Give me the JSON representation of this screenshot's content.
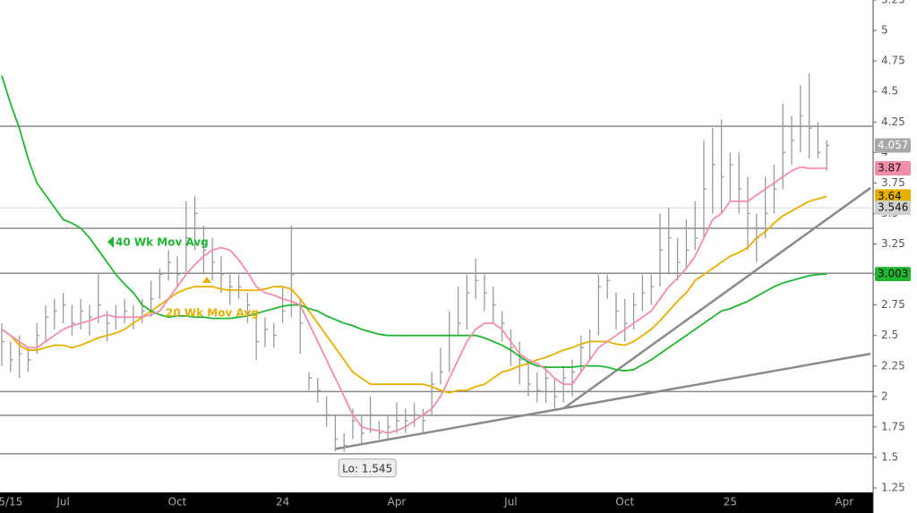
{
  "chart_data": {
    "type": "ohlc",
    "categories": [
      null,
      "5/15",
      null,
      null,
      null,
      null,
      null,
      "Jul",
      null,
      null,
      null,
      null,
      null,
      null,
      null,
      null,
      null,
      null,
      null,
      null,
      "Oct",
      null,
      null,
      null,
      null,
      null,
      null,
      null,
      null,
      null,
      null,
      null,
      "24",
      null,
      null,
      null,
      null,
      null,
      null,
      null,
      null,
      null,
      null,
      null,
      null,
      "Apr",
      null,
      null,
      null,
      null,
      null,
      null,
      null,
      null,
      null,
      null,
      null,
      null,
      "Jul",
      null,
      null,
      null,
      null,
      null,
      null,
      null,
      null,
      null,
      null,
      null,
      null,
      "Oct",
      null,
      null,
      null,
      null,
      null,
      null,
      null,
      null,
      null,
      null,
      null,
      "25",
      null,
      null,
      null,
      null,
      null,
      null,
      null,
      null,
      null,
      null,
      null,
      null,
      "Apr",
      null
    ],
    "high": [
      2.6,
      2.45,
      2.5,
      2.4,
      2.6,
      2.75,
      2.8,
      2.85,
      2.75,
      2.8,
      2.75,
      3.0,
      2.7,
      2.75,
      2.8,
      2.75,
      2.8,
      2.95,
      3.05,
      3.2,
      3.15,
      3.6,
      3.64,
      3.4,
      3.3,
      3.15,
      3.0,
      3.0,
      2.85,
      2.7,
      2.65,
      2.6,
      2.9,
      3.4,
      2.8,
      2.2,
      2.15,
      2.0,
      1.85,
      1.7,
      1.9,
      1.85,
      2.0,
      1.8,
      1.85,
      1.95,
      1.9,
      1.95,
      1.9,
      2.2,
      2.4,
      2.7,
      2.9,
      3.0,
      3.13,
      3.0,
      2.9,
      2.7,
      2.55,
      2.45,
      2.3,
      2.2,
      2.25,
      2.15,
      2.25,
      2.3,
      2.5,
      2.55,
      3.0,
      3.0,
      2.85,
      2.8,
      2.85,
      3.0,
      3.0,
      3.5,
      3.55,
      3.3,
      3.45,
      3.6,
      4.1,
      4.2,
      4.27,
      4.0,
      4.0,
      3.8,
      3.5,
      3.8,
      3.9,
      4.4,
      4.3,
      4.55,
      4.65,
      4.25,
      4.1,
      null,
      null,
      null
    ],
    "low": [
      2.25,
      2.2,
      2.15,
      2.2,
      2.35,
      2.45,
      2.55,
      2.6,
      2.5,
      2.55,
      2.5,
      2.6,
      2.45,
      2.55,
      2.6,
      2.55,
      2.6,
      2.65,
      2.8,
      2.95,
      2.9,
      3.0,
      3.2,
      3.0,
      2.95,
      2.85,
      2.75,
      2.8,
      2.6,
      2.3,
      2.4,
      2.4,
      2.6,
      2.65,
      2.35,
      2.05,
      1.95,
      1.75,
      1.55,
      1.545,
      1.65,
      1.6,
      1.7,
      1.65,
      1.65,
      1.7,
      1.7,
      1.75,
      1.7,
      1.85,
      2.1,
      2.2,
      2.5,
      2.55,
      2.8,
      2.7,
      2.6,
      2.45,
      2.25,
      2.1,
      2.0,
      1.95,
      1.95,
      1.9,
      1.95,
      2.0,
      2.2,
      2.3,
      2.5,
      2.8,
      2.55,
      2.45,
      2.55,
      2.7,
      2.75,
      2.9,
      3.0,
      2.95,
      3.05,
      3.2,
      3.3,
      3.5,
      3.5,
      3.6,
      3.5,
      3.2,
      3.1,
      3.3,
      3.5,
      3.7,
      3.9,
      4.0,
      3.95,
      3.95,
      3.85,
      null,
      null,
      null
    ],
    "close": [
      2.45,
      2.3,
      2.35,
      2.3,
      2.5,
      2.65,
      2.7,
      2.75,
      2.6,
      2.7,
      2.65,
      2.75,
      2.6,
      2.65,
      2.7,
      2.65,
      2.7,
      2.8,
      3.0,
      3.1,
      3.0,
      3.3,
      3.5,
      3.2,
      3.1,
      3.0,
      2.9,
      2.9,
      2.75,
      2.45,
      2.55,
      2.5,
      2.7,
      3.0,
      2.6,
      2.15,
      2.05,
      1.85,
      1.65,
      1.6,
      1.8,
      1.7,
      1.85,
      1.7,
      1.75,
      1.8,
      1.8,
      1.85,
      1.8,
      2.1,
      2.2,
      2.5,
      2.6,
      2.85,
      2.95,
      2.85,
      2.75,
      2.6,
      2.4,
      2.3,
      2.1,
      2.05,
      2.15,
      2.0,
      2.15,
      2.2,
      2.4,
      2.45,
      2.9,
      2.95,
      2.7,
      2.6,
      2.75,
      2.85,
      2.9,
      3.2,
      3.3,
      3.1,
      3.2,
      3.3,
      3.7,
      3.9,
      3.8,
      3.9,
      3.7,
      3.5,
      3.3,
      3.5,
      3.7,
      4.0,
      4.1,
      4.3,
      4.2,
      4.0,
      4.057,
      null,
      null,
      null
    ],
    "bar_color": "#9a9a9a",
    "series": [
      {
        "name": "20 Wk Mov Avg",
        "color": "#e6b000",
        "values": [
          2.55,
          2.5,
          2.42,
          2.38,
          2.38,
          2.4,
          2.42,
          2.42,
          2.4,
          2.42,
          2.45,
          2.48,
          2.5,
          2.52,
          2.55,
          2.6,
          2.65,
          2.7,
          2.75,
          2.8,
          2.85,
          2.88,
          2.9,
          2.9,
          2.9,
          2.88,
          2.87,
          2.87,
          2.87,
          2.87,
          2.88,
          2.9,
          2.9,
          2.88,
          2.8,
          2.7,
          2.6,
          2.5,
          2.4,
          2.3,
          2.2,
          2.15,
          2.1,
          2.1,
          2.1,
          2.1,
          2.1,
          2.1,
          2.1,
          2.08,
          2.05,
          2.03,
          2.05,
          2.05,
          2.08,
          2.1,
          2.15,
          2.2,
          2.22,
          2.25,
          2.27,
          2.3,
          2.32,
          2.35,
          2.38,
          2.4,
          2.43,
          2.45,
          2.45,
          2.45,
          2.43,
          2.42,
          2.45,
          2.5,
          2.55,
          2.62,
          2.7,
          2.78,
          2.85,
          2.95,
          3.0,
          3.05,
          3.1,
          3.15,
          3.18,
          3.22,
          3.3,
          3.35,
          3.42,
          3.48,
          3.52,
          3.56,
          3.6,
          3.62,
          3.64,
          null,
          null,
          null
        ]
      },
      {
        "name": "40 Wk Mov Avg",
        "color": "#22b533",
        "values": [
          4.63,
          4.4,
          4.2,
          3.95,
          3.75,
          3.65,
          3.55,
          3.45,
          3.42,
          3.38,
          3.3,
          3.2,
          3.1,
          3.0,
          2.92,
          2.85,
          2.75,
          2.7,
          2.67,
          2.65,
          2.66,
          2.66,
          2.65,
          2.65,
          2.64,
          2.64,
          2.64,
          2.65,
          2.66,
          2.68,
          2.7,
          2.72,
          2.74,
          2.75,
          2.75,
          2.72,
          2.7,
          2.66,
          2.63,
          2.6,
          2.58,
          2.55,
          2.53,
          2.51,
          2.5,
          2.5,
          2.5,
          2.5,
          2.5,
          2.5,
          2.5,
          2.5,
          2.5,
          2.5,
          2.5,
          2.48,
          2.45,
          2.42,
          2.38,
          2.33,
          2.28,
          2.25,
          2.24,
          2.24,
          2.24,
          2.24,
          2.25,
          2.25,
          2.25,
          2.24,
          2.22,
          2.21,
          2.22,
          2.26,
          2.3,
          2.35,
          2.4,
          2.45,
          2.5,
          2.55,
          2.6,
          2.65,
          2.7,
          2.72,
          2.75,
          2.78,
          2.82,
          2.86,
          2.9,
          2.93,
          2.95,
          2.97,
          2.99,
          3.0,
          3.003,
          null,
          null,
          null
        ]
      },
      {
        "color": "#f28fa8",
        "values": [
          2.55,
          2.5,
          2.45,
          2.4,
          2.4,
          2.45,
          2.5,
          2.55,
          2.58,
          2.6,
          2.62,
          2.65,
          2.67,
          2.65,
          2.65,
          2.65,
          2.65,
          2.67,
          2.7,
          2.8,
          2.9,
          3.0,
          3.08,
          3.15,
          3.2,
          3.22,
          3.2,
          3.12,
          3.02,
          2.9,
          2.85,
          2.83,
          2.8,
          2.78,
          2.75,
          2.6,
          2.45,
          2.3,
          2.15,
          2.0,
          1.85,
          1.75,
          1.73,
          1.72,
          1.7,
          1.72,
          1.75,
          1.8,
          1.85,
          1.9,
          2.0,
          2.15,
          2.3,
          2.45,
          2.55,
          2.6,
          2.6,
          2.55,
          2.45,
          2.35,
          2.3,
          2.27,
          2.22,
          2.15,
          2.1,
          2.1,
          2.2,
          2.3,
          2.4,
          2.45,
          2.5,
          2.55,
          2.6,
          2.65,
          2.7,
          2.8,
          2.9,
          2.97,
          3.05,
          3.15,
          3.3,
          3.45,
          3.5,
          3.6,
          3.6,
          3.6,
          3.65,
          3.7,
          3.75,
          3.8,
          3.85,
          3.88,
          3.87,
          3.87,
          3.87,
          null,
          null,
          null
        ]
      }
    ],
    "reference_level": 3.546,
    "levels": [
      4.215,
      3.378,
      3.01,
      2.04,
      1.845,
      1.53
    ],
    "trendlines": [
      {
        "from": [
          38,
          1.57
        ],
        "to": [
          99,
          2.35
        ]
      },
      {
        "from": [
          64,
          1.9
        ],
        "to": [
          99,
          3.71
        ]
      }
    ],
    "low_marker": {
      "label": "Lo: 1.545",
      "value": 1.545,
      "index": 39
    },
    "ylim": [
      1.25,
      5.25
    ],
    "yticks": [
      1.25,
      1.5,
      1.75,
      2,
      2.25,
      2.5,
      2.75,
      3,
      3.25,
      3.5,
      3.75,
      4,
      4.25,
      4.5,
      4.75,
      5,
      5.25
    ]
  }
}
